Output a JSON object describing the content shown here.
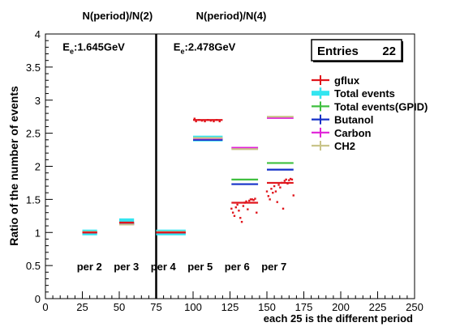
{
  "chart_data": {
    "type": "scatter",
    "title": "",
    "xlabel": "each 25 is the different period",
    "ylabel": "Ratio of the number of events",
    "xlim": [
      0,
      250
    ],
    "ylim": [
      0,
      4
    ],
    "x_ticks": [
      0,
      25,
      50,
      75,
      100,
      125,
      150,
      175,
      200,
      225,
      250
    ],
    "y_ticks": [
      0,
      0.5,
      1,
      1.5,
      2,
      2.5,
      3,
      3.5,
      4
    ],
    "grid": false,
    "legend_position": "right",
    "divider_x": 75,
    "stats_box": {
      "label": "Entries",
      "value": "22"
    },
    "header_labels": [
      {
        "text": "N(period)/N(2)",
        "x": 25
      },
      {
        "text": "N(period)/N(4)",
        "x": 102
      }
    ],
    "energy_labels": [
      {
        "text_prefix": "E",
        "sub": "e",
        "text_suffix": ":1.645GeV",
        "x": 15,
        "y": 3.75
      },
      {
        "text_prefix": "E",
        "sub": "e",
        "text_suffix": ":2.478GeV",
        "x": 90,
        "y": 3.75
      }
    ],
    "period_labels": [
      {
        "text": "per 2",
        "x": 40,
        "y": 0.55
      },
      {
        "text": "per 3",
        "x": 65,
        "y": 0.55
      },
      {
        "text": "per 4",
        "x": 90,
        "y": 0.55
      },
      {
        "text": "per 5",
        "x": 115,
        "y": 0.55
      },
      {
        "text": "per 6",
        "x": 140,
        "y": 0.55
      },
      {
        "text": "per 7",
        "x": 165,
        "y": 0.55
      }
    ],
    "series": [
      {
        "name": "gflux",
        "color": "#e0151c",
        "marker": "cross",
        "segments": [
          {
            "x0": 25,
            "x1": 35,
            "y": 1.0
          },
          {
            "x0": 50,
            "x1": 60,
            "y": 1.15
          },
          {
            "x0": 75,
            "x1": 95,
            "y": 1.0
          },
          {
            "x0": 100,
            "x1": 120,
            "y": 2.7
          },
          {
            "x0": 126,
            "x1": 144,
            "y": 1.45
          },
          {
            "x0": 150,
            "x1": 168,
            "y": 1.75
          }
        ],
        "points": [
          [
            101,
            2.72
          ],
          [
            102,
            2.68
          ],
          [
            104,
            2.7
          ],
          [
            106,
            2.69
          ],
          [
            108,
            2.68
          ],
          [
            110,
            2.7
          ],
          [
            112,
            2.69
          ],
          [
            114,
            2.68
          ],
          [
            116,
            2.7
          ],
          [
            118,
            2.68
          ],
          [
            126,
            1.36
          ],
          [
            127,
            1.3
          ],
          [
            128,
            1.25
          ],
          [
            129,
            1.38
          ],
          [
            130,
            1.42
          ],
          [
            131,
            1.33
          ],
          [
            132,
            1.22
          ],
          [
            133,
            1.16
          ],
          [
            134,
            1.4
          ],
          [
            135,
            1.45
          ],
          [
            136,
            1.47
          ],
          [
            137,
            1.35
          ],
          [
            138,
            1.48
          ],
          [
            139,
            1.5
          ],
          [
            140,
            1.5
          ],
          [
            141,
            1.49
          ],
          [
            142,
            1.51
          ],
          [
            143,
            1.3
          ],
          [
            150,
            1.62
          ],
          [
            151,
            1.55
          ],
          [
            152,
            1.5
          ],
          [
            153,
            1.66
          ],
          [
            154,
            1.6
          ],
          [
            155,
            1.7
          ],
          [
            156,
            1.62
          ],
          [
            157,
            1.46
          ],
          [
            158,
            1.72
          ],
          [
            159,
            1.68
          ],
          [
            160,
            1.75
          ],
          [
            161,
            1.36
          ],
          [
            162,
            1.78
          ],
          [
            163,
            1.8
          ],
          [
            164,
            1.74
          ],
          [
            165,
            1.79
          ],
          [
            166,
            1.81
          ],
          [
            167,
            1.8
          ],
          [
            168,
            1.56
          ]
        ]
      },
      {
        "name": "Total events",
        "color": "#33e5f0",
        "marker": "thick",
        "segments": [
          {
            "x0": 25,
            "x1": 35,
            "y": 1.0
          },
          {
            "x0": 50,
            "x1": 60,
            "y": 1.17
          },
          {
            "x0": 75,
            "x1": 95,
            "y": 1.0
          },
          {
            "x0": 100,
            "x1": 120,
            "y": 2.42
          }
        ]
      },
      {
        "name": "Total events(GPID)",
        "color": "#3fbf3f",
        "marker": "cross",
        "segments": [
          {
            "x0": 25,
            "x1": 35,
            "y": 1.0
          },
          {
            "x0": 50,
            "x1": 60,
            "y": 1.14
          },
          {
            "x0": 75,
            "x1": 95,
            "y": 1.0
          },
          {
            "x0": 100,
            "x1": 120,
            "y": 2.42
          },
          {
            "x0": 126,
            "x1": 144,
            "y": 1.8
          },
          {
            "x0": 150,
            "x1": 168,
            "y": 2.05
          }
        ]
      },
      {
        "name": "Butanol",
        "color": "#1430c8",
        "marker": "cross",
        "segments": [
          {
            "x0": 25,
            "x1": 35,
            "y": 1.0
          },
          {
            "x0": 50,
            "x1": 60,
            "y": 1.13
          },
          {
            "x0": 75,
            "x1": 95,
            "y": 1.0
          },
          {
            "x0": 100,
            "x1": 120,
            "y": 2.4
          },
          {
            "x0": 126,
            "x1": 144,
            "y": 1.73
          },
          {
            "x0": 150,
            "x1": 168,
            "y": 1.95
          }
        ]
      },
      {
        "name": "Carbon",
        "color": "#e020d8",
        "marker": "cross",
        "segments": [
          {
            "x0": 25,
            "x1": 35,
            "y": 1.0
          },
          {
            "x0": 50,
            "x1": 60,
            "y": 1.12
          },
          {
            "x0": 75,
            "x1": 95,
            "y": 1.0
          },
          {
            "x0": 100,
            "x1": 120,
            "y": 2.42
          },
          {
            "x0": 126,
            "x1": 144,
            "y": 2.28
          },
          {
            "x0": 150,
            "x1": 168,
            "y": 2.73
          }
        ]
      },
      {
        "name": "CH2",
        "color": "#c9c48a",
        "marker": "cross",
        "segments": [
          {
            "x0": 25,
            "x1": 35,
            "y": 1.01
          },
          {
            "x0": 50,
            "x1": 60,
            "y": 1.12
          },
          {
            "x0": 75,
            "x1": 95,
            "y": 1.01
          },
          {
            "x0": 100,
            "x1": 120,
            "y": 2.43
          },
          {
            "x0": 126,
            "x1": 144,
            "y": 2.26
          },
          {
            "x0": 150,
            "x1": 168,
            "y": 2.75
          }
        ]
      }
    ]
  }
}
